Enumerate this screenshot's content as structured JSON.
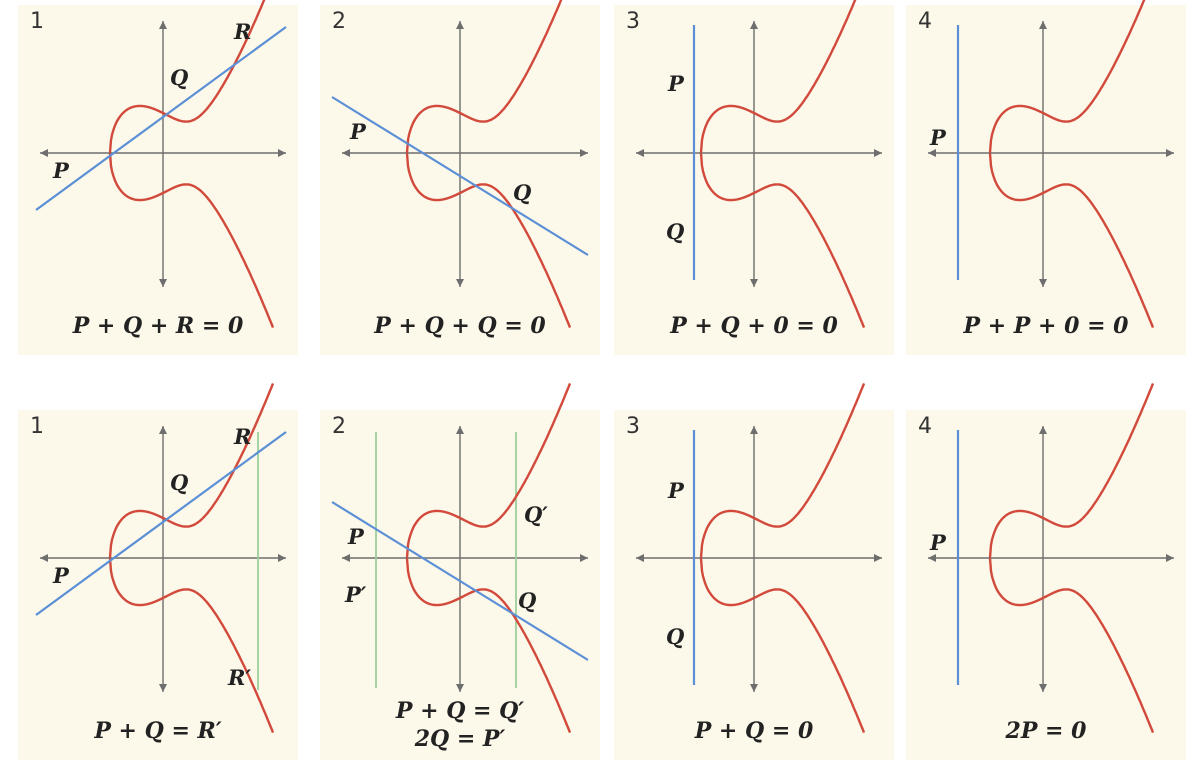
{
  "colors": {
    "panel_bg": "#fcf8ea",
    "curve": "#d24a3c",
    "secant_line": "#5b8fd6",
    "reflection_line": "#9ccf9c",
    "axis": "#6e6e6e"
  },
  "rows": [
    {
      "panels": [
        {
          "number": "1",
          "caption": "P + Q + R = 0",
          "labels": [
            "P",
            "Q",
            "R"
          ]
        },
        {
          "number": "2",
          "caption": "P + Q + Q = 0",
          "labels": [
            "P",
            "Q"
          ]
        },
        {
          "number": "3",
          "caption": "P + Q + 0 = 0",
          "labels": [
            "P",
            "Q"
          ]
        },
        {
          "number": "4",
          "caption": "P + P + 0 = 0",
          "labels": [
            "P"
          ]
        }
      ]
    },
    {
      "panels": [
        {
          "number": "1",
          "caption": "P + Q = R′",
          "labels": [
            "P",
            "Q",
            "R",
            "R′"
          ]
        },
        {
          "number": "2",
          "caption": "P + Q = Q′",
          "caption2": "2Q = P′",
          "labels": [
            "P",
            "Q",
            "P′",
            "Q′"
          ]
        },
        {
          "number": "3",
          "caption": "P + Q = 0",
          "labels": [
            "P",
            "Q"
          ]
        },
        {
          "number": "4",
          "caption": "2P = 0",
          "labels": [
            "P"
          ]
        }
      ]
    }
  ]
}
